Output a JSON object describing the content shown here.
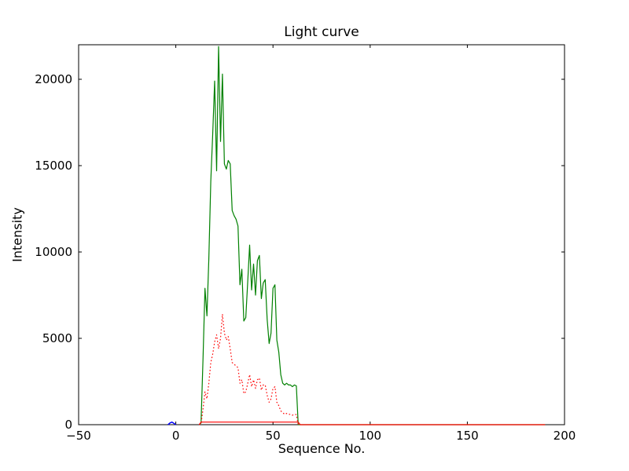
{
  "chart_data": {
    "type": "line",
    "title": "Light curve",
    "xlabel": "Sequence No.",
    "ylabel": "Intensity",
    "xlim": [
      -50,
      200
    ],
    "ylim": [
      0,
      22000
    ],
    "grid": false,
    "legend": "none",
    "xticks": [
      {
        "v": -50,
        "label": "−50"
      },
      {
        "v": 0,
        "label": "0"
      },
      {
        "v": 50,
        "label": "50"
      },
      {
        "v": 100,
        "label": "100"
      },
      {
        "v": 150,
        "label": "150"
      },
      {
        "v": 200,
        "label": "200"
      }
    ],
    "yticks": [
      {
        "v": 0,
        "label": "0"
      },
      {
        "v": 5000,
        "label": "5000"
      },
      {
        "v": 10000,
        "label": "10000"
      },
      {
        "v": 15000,
        "label": "15000"
      },
      {
        "v": 20000,
        "label": "20000"
      }
    ],
    "series": [
      {
        "name": "intensity-main-green-line",
        "color": "#008000",
        "style": "solid",
        "width": 1.2,
        "points": [
          [
            12,
            0
          ],
          [
            13,
            100
          ],
          [
            14,
            3800
          ],
          [
            15,
            7900
          ],
          [
            16,
            6300
          ],
          [
            17,
            9600
          ],
          [
            18,
            14100
          ],
          [
            19,
            16900
          ],
          [
            20,
            19900
          ],
          [
            21,
            14700
          ],
          [
            22,
            21900
          ],
          [
            23,
            16400
          ],
          [
            24,
            20300
          ],
          [
            25,
            15100
          ],
          [
            26,
            14800
          ],
          [
            27,
            15300
          ],
          [
            28,
            15100
          ],
          [
            29,
            12400
          ],
          [
            30,
            12100
          ],
          [
            31,
            11900
          ],
          [
            32,
            11500
          ],
          [
            33,
            8100
          ],
          [
            34,
            9000
          ],
          [
            35,
            6000
          ],
          [
            36,
            6200
          ],
          [
            37,
            8300
          ],
          [
            38,
            10400
          ],
          [
            39,
            7800
          ],
          [
            40,
            9300
          ],
          [
            41,
            7500
          ],
          [
            42,
            9500
          ],
          [
            43,
            9800
          ],
          [
            44,
            7300
          ],
          [
            45,
            8200
          ],
          [
            46,
            8400
          ],
          [
            47,
            6100
          ],
          [
            48,
            4700
          ],
          [
            49,
            5300
          ],
          [
            50,
            7900
          ],
          [
            51,
            8100
          ],
          [
            52,
            4900
          ],
          [
            53,
            4200
          ],
          [
            54,
            2900
          ],
          [
            55,
            2400
          ],
          [
            56,
            2300
          ],
          [
            57,
            2400
          ],
          [
            58,
            2300
          ],
          [
            59,
            2300
          ],
          [
            60,
            2200
          ],
          [
            61,
            2300
          ],
          [
            62,
            2250
          ],
          [
            63,
            0
          ],
          [
            64,
            0
          ],
          [
            190,
            0
          ]
        ]
      },
      {
        "name": "intensity-secondary-red-dotted-line",
        "color": "#ff0000",
        "style": "dotted",
        "width": 1.2,
        "points": [
          [
            12,
            0
          ],
          [
            13,
            60
          ],
          [
            14,
            900
          ],
          [
            15,
            1900
          ],
          [
            16,
            1500
          ],
          [
            17,
            2400
          ],
          [
            18,
            3600
          ],
          [
            19,
            4100
          ],
          [
            20,
            4800
          ],
          [
            21,
            5200
          ],
          [
            22,
            4400
          ],
          [
            23,
            5000
          ],
          [
            24,
            6400
          ],
          [
            25,
            5300
          ],
          [
            26,
            4900
          ],
          [
            27,
            5100
          ],
          [
            28,
            4400
          ],
          [
            29,
            3600
          ],
          [
            30,
            3500
          ],
          [
            31,
            3400
          ],
          [
            32,
            3300
          ],
          [
            33,
            2400
          ],
          [
            34,
            2600
          ],
          [
            35,
            1800
          ],
          [
            36,
            1900
          ],
          [
            37,
            2400
          ],
          [
            38,
            2900
          ],
          [
            39,
            2200
          ],
          [
            40,
            2600
          ],
          [
            41,
            2100
          ],
          [
            42,
            2600
          ],
          [
            43,
            2700
          ],
          [
            44,
            2000
          ],
          [
            45,
            2300
          ],
          [
            46,
            2300
          ],
          [
            47,
            1700
          ],
          [
            48,
            1300
          ],
          [
            49,
            1500
          ],
          [
            50,
            2100
          ],
          [
            51,
            2200
          ],
          [
            52,
            1300
          ],
          [
            53,
            1100
          ],
          [
            54,
            800
          ],
          [
            55,
            700
          ],
          [
            56,
            600
          ],
          [
            57,
            650
          ],
          [
            58,
            600
          ],
          [
            59,
            600
          ],
          [
            60,
            550
          ],
          [
            61,
            600
          ],
          [
            62,
            580
          ],
          [
            63,
            0
          ]
        ]
      },
      {
        "name": "background-level-red-solid-line",
        "color": "#ff0000",
        "style": "solid",
        "width": 1.2,
        "points": [
          [
            12,
            0
          ],
          [
            13,
            150
          ],
          [
            63,
            150
          ],
          [
            64,
            0
          ],
          [
            190,
            0
          ]
        ]
      },
      {
        "name": "start-marker-blue-line",
        "color": "#0000ff",
        "style": "solid",
        "width": 1.5,
        "points": [
          [
            -4,
            0
          ],
          [
            -3,
            100
          ],
          [
            -2,
            150
          ],
          [
            -1,
            80
          ],
          [
            0,
            0
          ]
        ]
      }
    ]
  }
}
